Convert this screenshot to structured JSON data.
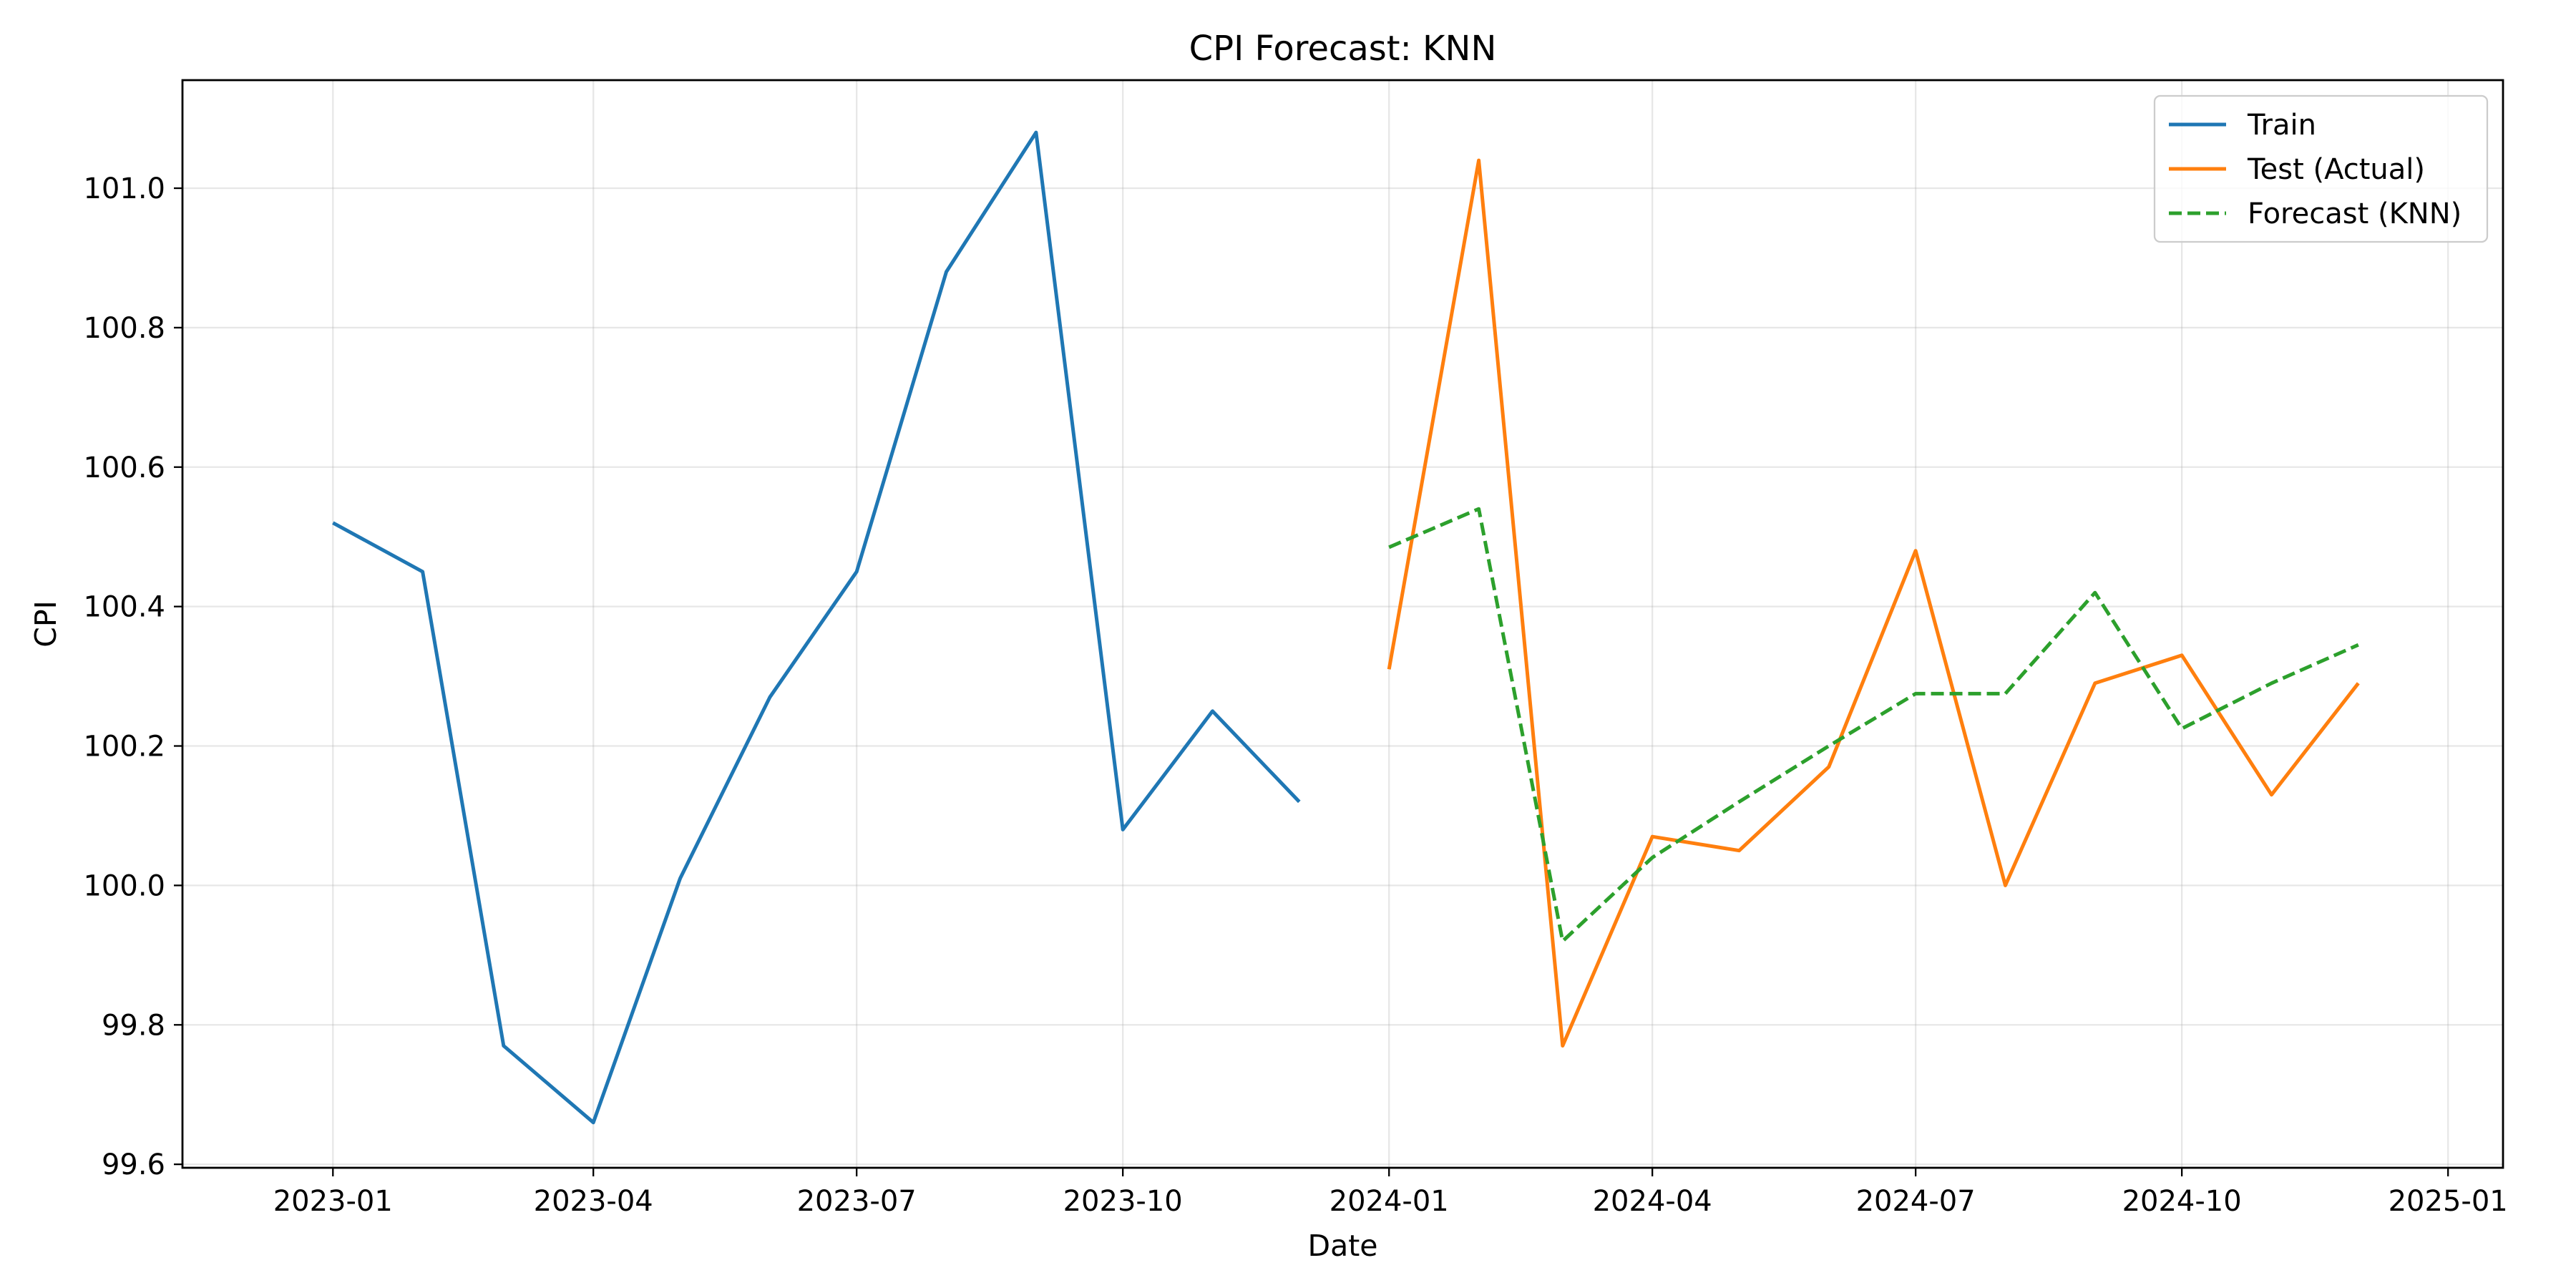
{
  "chart_data": {
    "type": "line",
    "title": "CPI Forecast: KNN",
    "xlabel": "Date",
    "ylabel": "CPI",
    "xlim": [
      "2022-11-10",
      "2025-01-20"
    ],
    "ylim": [
      99.595,
      101.155
    ],
    "grid": true,
    "legend_position": "upper right",
    "x_ticks": [
      "2023-01",
      "2023-04",
      "2023-07",
      "2023-10",
      "2024-01",
      "2024-04",
      "2024-07",
      "2024-10",
      "2025-01"
    ],
    "y_ticks": [
      "99.6",
      "99.8",
      "100.0",
      "100.2",
      "100.4",
      "100.6",
      "100.8",
      "101.0"
    ],
    "series": [
      {
        "name": "Train",
        "color": "#1f77b4",
        "style": "solid",
        "x": [
          "2023-01-01",
          "2023-02-01",
          "2023-03-01",
          "2023-04-01",
          "2023-05-01",
          "2023-06-01",
          "2023-07-01",
          "2023-08-01",
          "2023-09-01",
          "2023-10-01",
          "2023-11-01",
          "2023-12-01"
        ],
        "y": [
          100.52,
          100.45,
          99.77,
          99.66,
          100.01,
          100.27,
          100.45,
          100.88,
          101.08,
          100.08,
          100.25,
          100.12
        ]
      },
      {
        "name": "Test (Actual)",
        "color": "#ff7f0e",
        "style": "solid",
        "x": [
          "2024-01-01",
          "2024-02-01",
          "2024-03-01",
          "2024-04-01",
          "2024-05-01",
          "2024-06-01",
          "2024-07-01",
          "2024-08-01",
          "2024-09-01",
          "2024-10-01",
          "2024-11-01",
          "2024-12-01"
        ],
        "y": [
          100.31,
          101.04,
          99.77,
          100.07,
          100.05,
          100.17,
          100.48,
          100.0,
          100.29,
          100.33,
          100.13,
          100.29
        ]
      },
      {
        "name": "Forecast (KNN)",
        "color": "#2ca02c",
        "style": "dashed",
        "x": [
          "2024-01-01",
          "2024-02-01",
          "2024-03-01",
          "2024-04-01",
          "2024-05-01",
          "2024-06-01",
          "2024-07-01",
          "2024-08-01",
          "2024-09-01",
          "2024-10-01",
          "2024-11-01",
          "2024-12-01"
        ],
        "y": [
          100.485,
          100.54,
          99.92,
          100.04,
          100.12,
          100.2,
          100.275,
          100.275,
          100.42,
          100.225,
          100.29,
          100.345
        ]
      }
    ]
  }
}
